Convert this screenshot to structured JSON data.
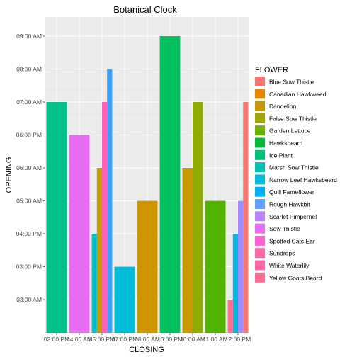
{
  "chart_data": {
    "type": "bar",
    "title": "Botanical Clock",
    "xlabel": "CLOSING",
    "ylabel": "OPENING",
    "x_tick_labels": [
      "02:00 PM",
      "04:00 AM",
      "05:00 PM",
      "07:00 PM",
      "08:00 AM",
      "10:00 PM",
      "10:00 AM",
      "11:00 AM",
      "12:00 PM"
    ],
    "y_tick_labels": [
      "03:00 AM",
      "03:00 PM",
      "04:00 PM",
      "05:00 AM",
      "06:00 AM",
      "06:00 PM",
      "07:00 AM",
      "08:00 AM",
      "09:00 AM"
    ],
    "legend_title": "FLOWER",
    "legend_position": "right",
    "grid": true,
    "series": [
      {
        "name": "Blue Sow Thistle",
        "color": "#F8766D"
      },
      {
        "name": "Canadian Hawkweed",
        "color": "#E58700"
      },
      {
        "name": "Dandelion",
        "color": "#C99800"
      },
      {
        "name": "False Sow Thistle",
        "color": "#A3A500"
      },
      {
        "name": "Garden Lettuce",
        "color": "#6BB100"
      },
      {
        "name": "Hawksbeard",
        "color": "#00BA38"
      },
      {
        "name": "Ice Plant",
        "color": "#00BF7D"
      },
      {
        "name": "Marsh Sow Thistle",
        "color": "#00C0AF"
      },
      {
        "name": "Narrow Leaf Hawksbeard",
        "color": "#00BCD8"
      },
      {
        "name": "Quill Fameflower",
        "color": "#00B0F6"
      },
      {
        "name": "Rough Hawkbit",
        "color": "#619CFF"
      },
      {
        "name": "Scarlet Pimpernel",
        "color": "#B983FF"
      },
      {
        "name": "Sow Thistle",
        "color": "#E76BF3"
      },
      {
        "name": "Spotted Cats Ear",
        "color": "#FD61D1"
      },
      {
        "name": "Sundrops",
        "color": "#FF67A4"
      },
      {
        "name": "White Waterlily",
        "color": "#FF67A4"
      },
      {
        "name": "Yellow Goats Beard",
        "color": "#FF6C91"
      }
    ],
    "bars": [
      {
        "x": "02:00 PM",
        "y": "07:00 AM",
        "color": "#00C08B"
      },
      {
        "x": "04:00 AM",
        "y": "06:00 PM",
        "color": "#E76BF3"
      },
      {
        "x": "05:00 PM",
        "y": "04:00 PM",
        "color": "#00BFC4"
      },
      {
        "x": "05:00 PM",
        "y": "06:00 AM",
        "color": "#C99800"
      },
      {
        "x": "05:00 PM",
        "y": "07:00 AM",
        "color": "#FF62BC"
      },
      {
        "x": "05:00 PM",
        "y": "08:00 AM",
        "color": "#35A2FF"
      },
      {
        "x": "07:00 PM",
        "y": "03:00 PM",
        "color": "#00BCD8"
      },
      {
        "x": "08:00 AM",
        "y": "05:00 AM",
        "color": "#D09400"
      },
      {
        "x": "10:00 PM",
        "y": "09:00 AM",
        "color": "#00C15E"
      },
      {
        "x": "10:00 AM",
        "y": "06:00 AM",
        "color": "#C99800"
      },
      {
        "x": "10:00 AM",
        "y": "07:00 AM",
        "color": "#8FAA00"
      },
      {
        "x": "11:00 AM",
        "y": "05:00 AM",
        "color": "#53B400"
      },
      {
        "x": "12:00 PM",
        "y": "03:00 AM",
        "color": "#FF6C91"
      },
      {
        "x": "12:00 PM",
        "y": "04:00 PM",
        "color": "#00B7E0"
      },
      {
        "x": "12:00 PM",
        "y": "05:00 AM",
        "color": "#A58AFF"
      },
      {
        "x": "12:00 PM",
        "y": "07:00 AM",
        "color": "#F8766D"
      }
    ]
  }
}
